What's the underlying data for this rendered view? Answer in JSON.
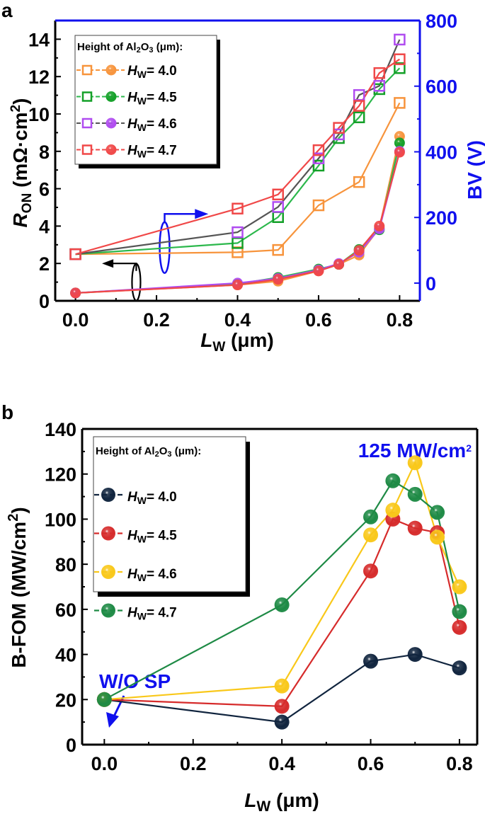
{
  "panels": {
    "a": "a",
    "b": "b"
  },
  "chart_data": [
    {
      "type": "line",
      "panel": "a",
      "xlabel": {
        "main": "L",
        "sub": "W",
        "rest": " (μm)"
      },
      "ylabel_left": {
        "main": "R",
        "sub": "ON",
        "rest": " (mΩ·cm",
        "sup": "2",
        "end": ")"
      },
      "ylabel_right": "BV (V)",
      "xlim": [
        -0.05,
        0.85
      ],
      "ylim_left": [
        0,
        15
      ],
      "ylim_right": [
        -54,
        800
      ],
      "xticks": [
        "0.0",
        "0.2",
        "0.4",
        "0.6",
        "0.8"
      ],
      "yticks_left": [
        "0",
        "2",
        "4",
        "6",
        "8",
        "10",
        "12",
        "14"
      ],
      "yticks_right": [
        "0",
        "200",
        "400",
        "600",
        "800"
      ],
      "right_axis_color": "#1010ee",
      "legend": {
        "title": "Height of Al2O3 (μm):",
        "placement": "top-left"
      },
      "series": [
        {
          "name": "HW= 4.0",
          "square_color": "#f7943c",
          "bv_line": "#f7943c",
          "circle_color": "#f7943c",
          "ron_line": "#f7943c",
          "bv": {
            "x": [
              0,
              0.4,
              0.5,
              0.6,
              0.7,
              0.8
            ],
            "y": [
              88,
              94,
              101,
              237,
              308,
              549
            ]
          },
          "ron": {
            "x": [
              0,
              0.4,
              0.5,
              0.6,
              0.65,
              0.7,
              0.75,
              0.8
            ],
            "y": [
              0.42,
              0.85,
              1.05,
              1.6,
              1.95,
              2.45,
              3.9,
              8.8
            ]
          }
        },
        {
          "name": "HW= 4.5",
          "square_color": "#14a028",
          "bv_line": "#2cb84c",
          "circle_color": "#14a028",
          "ron_line": "#2cb84c",
          "bv": {
            "x": [
              0,
              0.4,
              0.5,
              0.6,
              0.65,
              0.7,
              0.75,
              0.8
            ],
            "y": [
              88,
              122,
              201,
              358,
              442,
              505,
              591,
              655
            ]
          },
          "ron": {
            "x": [
              0,
              0.4,
              0.5,
              0.6,
              0.65,
              0.7,
              0.75,
              0.8
            ],
            "y": [
              0.42,
              0.9,
              1.25,
              1.7,
              1.95,
              2.75,
              3.8,
              8.45
            ]
          }
        },
        {
          "name": "HW= 4.6",
          "square_color": "#b04cf0",
          "bv_line": "#555555",
          "circle_color": "#b04cf0",
          "ron_line": "#b04cf0",
          "bv": {
            "x": [
              0,
              0.4,
              0.5,
              0.6,
              0.65,
              0.7,
              0.75,
              0.8
            ],
            "y": [
              88,
              155,
              232,
              380,
              453,
              573,
              601,
              742
            ]
          },
          "ron": {
            "x": [
              0,
              0.4,
              0.5,
              0.6,
              0.65,
              0.7,
              0.75,
              0.8
            ],
            "y": [
              0.42,
              0.95,
              1.2,
              1.65,
              2.0,
              2.6,
              3.85,
              8.0
            ]
          }
        },
        {
          "name": "HW= 4.7",
          "square_color": "#f04848",
          "bv_line": "#f04848",
          "circle_color": "#f04848",
          "ron_line": "#f04848",
          "bv": {
            "x": [
              0,
              0.4,
              0.5,
              0.6,
              0.65,
              0.7,
              0.75,
              0.8
            ],
            "y": [
              88,
              227,
              270,
              405,
              473,
              540,
              640,
              682
            ]
          },
          "ron": {
            "x": [
              0,
              0.4,
              0.5,
              0.6,
              0.65,
              0.7,
              0.75,
              0.8
            ],
            "y": [
              0.42,
              0.85,
              1.15,
              1.6,
              1.95,
              2.7,
              4.0,
              7.95
            ]
          }
        }
      ]
    },
    {
      "type": "line",
      "panel": "b",
      "xlabel": {
        "main": "L",
        "sub": "W",
        "rest": " (μm)"
      },
      "ylabel": {
        "main": "B-FOM (MW/cm",
        "sup": "2",
        "end": ")"
      },
      "xlim": [
        -0.05,
        0.84
      ],
      "ylim": [
        0,
        140
      ],
      "xticks": [
        "0.0",
        "0.2",
        "0.4",
        "0.6",
        "0.8"
      ],
      "yticks": [
        "0",
        "20",
        "40",
        "60",
        "80",
        "100",
        "120",
        "140"
      ],
      "legend": {
        "title": "Height of Al2O3 (μm):",
        "placement": "top-left"
      },
      "annotations": [
        {
          "text": "125 MW/cm",
          "sup": "2",
          "color": "#1010ee"
        },
        {
          "text": "W/O SP",
          "color": "#1010ee"
        }
      ],
      "series": [
        {
          "name": "HW= 4.0",
          "color": "#10243e",
          "x": [
            0,
            0.4,
            0.6,
            0.7,
            0.8
          ],
          "y": [
            20,
            10,
            37,
            40,
            34
          ]
        },
        {
          "name": "HW= 4.5",
          "color": "#d62b2b",
          "x": [
            0,
            0.4,
            0.6,
            0.65,
            0.7,
            0.75,
            0.8
          ],
          "y": [
            20,
            17,
            77,
            100,
            96,
            94,
            52
          ]
        },
        {
          "name": "HW= 4.6",
          "color": "#f9c81a",
          "x": [
            0,
            0.4,
            0.6,
            0.65,
            0.7,
            0.75,
            0.8
          ],
          "y": [
            20,
            26,
            93,
            104,
            125,
            92,
            70
          ]
        },
        {
          "name": "HW= 4.7",
          "color": "#1e8a45",
          "x": [
            0,
            0.4,
            0.6,
            0.65,
            0.7,
            0.75,
            0.8
          ],
          "y": [
            20,
            62,
            101,
            117,
            111,
            103,
            59
          ]
        }
      ]
    }
  ]
}
